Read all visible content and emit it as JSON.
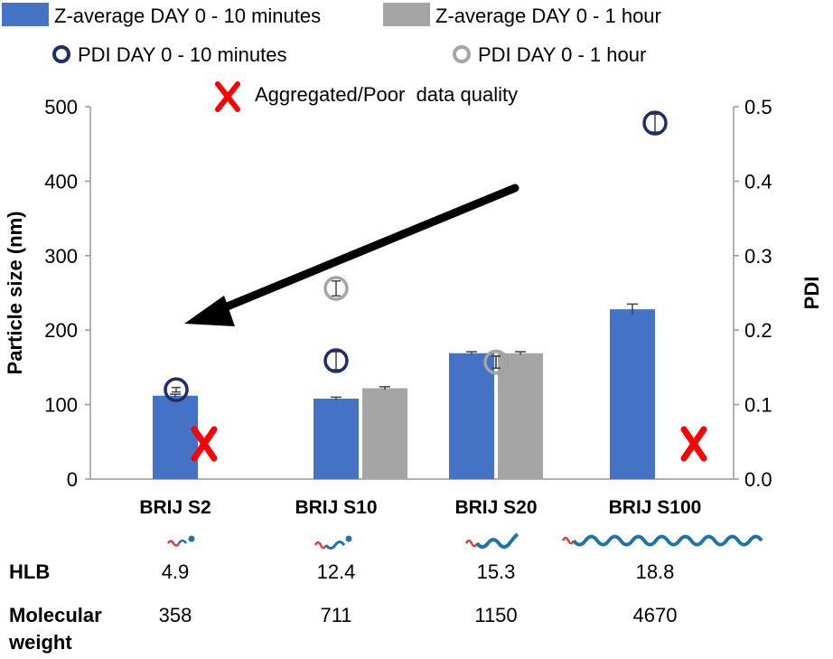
{
  "chart_data": {
    "type": "bar",
    "categories": [
      "BRIJ S2",
      "BRIJ S10",
      "BRIJ S20",
      "BRIJ S100"
    ],
    "ylabel": "Particle size (nm)",
    "y2label": "PDI",
    "ylim": [
      0,
      500
    ],
    "y2lim": [
      0,
      0.5
    ],
    "yticks": [
      "0",
      "100",
      "200",
      "300",
      "400",
      "500"
    ],
    "y2ticks": [
      "0.0",
      "0.1",
      "0.2",
      "0.3",
      "0.4",
      "0.5"
    ],
    "series": [
      {
        "name": "Z-average DAY 0 - 10 minutes",
        "kind": "bar",
        "axis": "left",
        "color": "#4472c4",
        "values": [
          112,
          108,
          169,
          228
        ],
        "errors": [
          2,
          2,
          2,
          7
        ]
      },
      {
        "name": "Z-average DAY 0 - 1 hour",
        "kind": "bar",
        "axis": "left",
        "color": "#a5a5a5",
        "values": [
          null,
          122,
          169,
          null
        ],
        "errors": [
          null,
          2,
          2,
          null
        ]
      },
      {
        "name": "PDI DAY 0 - 10 minutes",
        "kind": "marker",
        "axis": "right",
        "color": "#1f2d6b",
        "values": [
          0.12,
          0.159,
          0.157,
          0.478
        ],
        "errors": [
          0.003,
          0.012,
          0.008,
          0.012
        ]
      },
      {
        "name": "PDI DAY 0 - 1 hour",
        "kind": "marker",
        "axis": "right",
        "color": "#a5a5a5",
        "values": [
          null,
          0.256,
          0.157,
          null
        ],
        "errors": [
          null,
          0.01,
          0.008,
          null
        ]
      }
    ],
    "aggregated_label": "Aggregated/Poor  data quality",
    "aggregated_categories": [
      "BRIJ S2",
      "BRIJ S100"
    ],
    "grid": false,
    "legend_position": "top"
  },
  "table": {
    "hlb_label": "HLB",
    "hlb_values": [
      "4.9",
      "12.4",
      "15.3",
      "18.8"
    ],
    "mw_label_line1": "Molecular",
    "mw_label_line2": "weight",
    "mw_values": [
      "358",
      "711",
      "1150",
      "4670"
    ]
  },
  "colors": {
    "bar_blue": "#4472c4",
    "bar_gray": "#a5a5a5",
    "pdi_navy": "#1f2d6b",
    "pdi_gray": "#a5a5a5",
    "cross_red": "#ff0000",
    "arrow": "#000000",
    "chain_red": "#e03c3c",
    "chain_teal": "#1f74a7"
  }
}
